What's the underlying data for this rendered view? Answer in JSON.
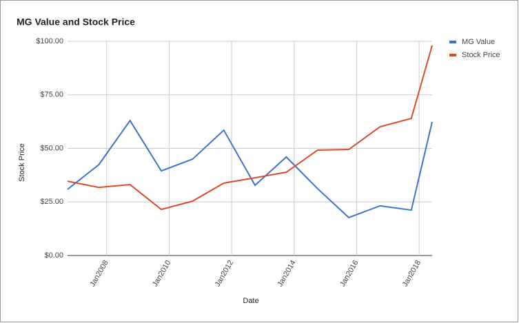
{
  "chart_data": {
    "type": "line",
    "title": "MG Value and Stock Price",
    "x_label": "Date",
    "y_label": "Stock Price",
    "x": [
      "2006-10",
      "2007-10",
      "2008-10",
      "2009-10",
      "2010-10",
      "2011-10",
      "2012-10",
      "2013-10",
      "2014-10",
      "2015-10",
      "2016-10",
      "2017-10",
      "2018-06"
    ],
    "series": [
      {
        "name": "MG Value",
        "color": "#3f6fcf",
        "values": [
          30.9,
          42.4,
          63.0,
          39.5,
          45.0,
          58.5,
          32.8,
          46.0,
          31.2,
          17.7,
          23.2,
          21.2,
          62.4
        ]
      },
      {
        "name": "Stock Price",
        "color": "#dc4a26",
        "values": [
          34.7,
          31.8,
          33.1,
          21.5,
          25.4,
          33.8,
          36.3,
          38.9,
          49.2,
          49.5,
          60.1,
          64.0,
          98.1
        ]
      }
    ],
    "xlim": [
      "2006-10",
      "2018-06"
    ],
    "xticks": [
      {
        "value": "2008-01",
        "label": "Jan2008"
      },
      {
        "value": "2010-01",
        "label": "Jan2010"
      },
      {
        "value": "2012-01",
        "label": "Jan2012"
      },
      {
        "value": "2014-01",
        "label": "Jan2014"
      },
      {
        "value": "2016-01",
        "label": "Jan2016"
      },
      {
        "value": "2018-01",
        "label": "Jan2018"
      }
    ],
    "ylim": [
      0,
      100
    ],
    "yticks": [
      {
        "value": 0,
        "label": "$0.00"
      },
      {
        "value": 25,
        "label": "$25.00"
      },
      {
        "value": 50,
        "label": "$50.00"
      },
      {
        "value": 75,
        "label": "$75.00"
      },
      {
        "value": 100,
        "label": "$100.00"
      }
    ],
    "grid": true,
    "legend": "right"
  }
}
